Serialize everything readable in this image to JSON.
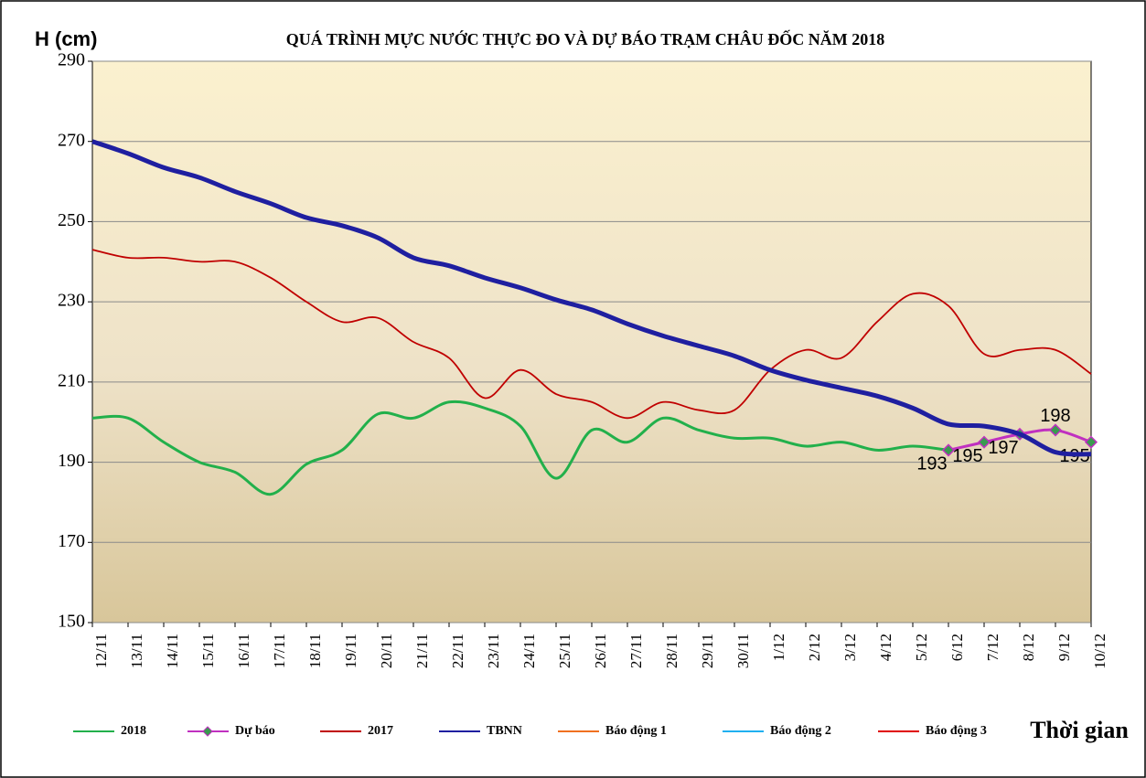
{
  "chart_data": {
    "type": "line",
    "title": "QUÁ TRÌNH MỰC NƯỚC THỰC ĐO VÀ DỰ BÁO TRẠM CHÂU ĐỐC NĂM 2018",
    "y_label": "H (cm)",
    "x_label": "Thời gian",
    "categories": [
      "12/11",
      "13/11",
      "14/11",
      "15/11",
      "16/11",
      "17/11",
      "18/11",
      "19/11",
      "20/11",
      "21/11",
      "22/11",
      "23/11",
      "24/11",
      "25/11",
      "26/11",
      "27/11",
      "28/11",
      "29/11",
      "30/11",
      "1/12",
      "2/12",
      "3/12",
      "4/12",
      "5/12",
      "6/12",
      "7/12",
      "8/12",
      "9/12",
      "10/12"
    ],
    "series": [
      {
        "name": "2018",
        "color": "#22b04b",
        "values": [
          201,
          201,
          195,
          190,
          187.5,
          182,
          189.5,
          193,
          202,
          201,
          205,
          203.5,
          199,
          186,
          198,
          195,
          201,
          198,
          196,
          196,
          194,
          195,
          193,
          194,
          193,
          null,
          null,
          null,
          null
        ]
      },
      {
        "name": "Dự báo",
        "color": "#c030c0",
        "marker": "diamond",
        "values": [
          null,
          null,
          null,
          null,
          null,
          null,
          null,
          null,
          null,
          null,
          null,
          null,
          null,
          null,
          null,
          null,
          null,
          null,
          null,
          null,
          null,
          null,
          null,
          null,
          193,
          195,
          197,
          198,
          195
        ]
      },
      {
        "name": "2017",
        "color": "#c00000",
        "values": [
          243,
          241,
          241,
          240,
          240,
          236,
          230,
          225,
          226,
          220,
          216,
          206,
          213,
          207,
          205,
          201,
          205,
          203,
          203,
          213,
          218,
          216,
          225,
          232,
          229,
          217,
          218,
          218,
          212
        ]
      },
      {
        "name": "TBNN",
        "color": "#1f1fa0",
        "values": [
          270,
          267,
          263.5,
          261,
          257.5,
          254.5,
          251,
          249,
          246,
          241,
          239,
          236,
          233.5,
          230.5,
          228,
          224.5,
          221.5,
          219,
          216.5,
          213,
          210.5,
          208.5,
          206.5,
          203.5,
          199.5,
          199,
          197,
          192.5,
          192
        ]
      },
      {
        "name": "Báo động 1",
        "color": "#f07020",
        "values": [
          null,
          null,
          null,
          null,
          null,
          null,
          null,
          null,
          null,
          null,
          null,
          null,
          null,
          null,
          null,
          null,
          null,
          null,
          null,
          null,
          null,
          null,
          null,
          null,
          null,
          null,
          null,
          null,
          null
        ]
      },
      {
        "name": "Báo động 2",
        "color": "#20b0f0",
        "values": [
          null,
          null,
          null,
          null,
          null,
          null,
          null,
          null,
          null,
          null,
          null,
          null,
          null,
          null,
          null,
          null,
          null,
          null,
          null,
          null,
          null,
          null,
          null,
          null,
          null,
          null,
          null,
          null,
          null
        ]
      },
      {
        "name": "Báo động 3",
        "color": "#e00000",
        "values": [
          null,
          null,
          null,
          null,
          null,
          null,
          null,
          null,
          null,
          null,
          null,
          null,
          null,
          null,
          null,
          null,
          null,
          null,
          null,
          null,
          null,
          null,
          null,
          null,
          null,
          null,
          null,
          null,
          null
        ]
      }
    ],
    "ylim": [
      150,
      290
    ],
    "yticks": [
      150,
      170,
      190,
      210,
      230,
      250,
      270,
      290
    ],
    "grid": true,
    "legend": "bottom"
  }
}
